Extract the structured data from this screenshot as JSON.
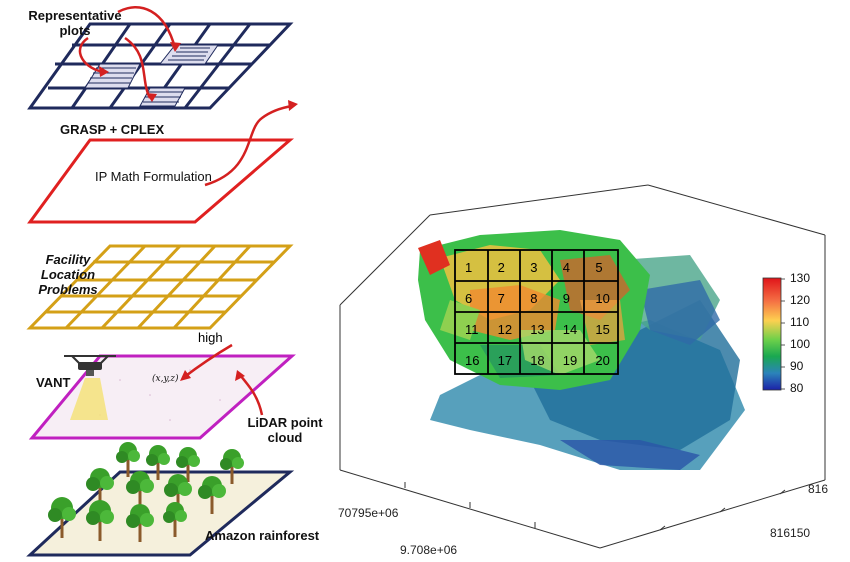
{
  "left_panel": {
    "representative_plots": "Representative plots",
    "grasp_cplex": "GRASP + CPLEX",
    "ip_math": "IP Math Formulation",
    "facility_location": "Facility Location Problems",
    "high": "high",
    "vant": "VANT",
    "xyz": "(x,y,z)",
    "lidar": "LiDAR point cloud",
    "amazon": "Amazon rainforest"
  },
  "right_panel": {
    "grid_cells": [
      "1",
      "2",
      "3",
      "4",
      "5",
      "6",
      "7",
      "8",
      "9",
      "10",
      "11",
      "12",
      "13",
      "14",
      "15",
      "16",
      "17",
      "18",
      "19",
      "20"
    ],
    "colorbar": {
      "ticks": [
        "130",
        "120",
        "110",
        "100",
        "90",
        "80"
      ],
      "range": [
        80,
        130
      ],
      "colors": [
        "#d7191c",
        "#f46d43",
        "#fdae61",
        "#a6d96a",
        "#1a9641",
        "#2b83ba",
        "#2c2ca0"
      ]
    },
    "axis": {
      "x_label_left": "70795e+06",
      "x_label_bottom": "9.708e+06",
      "y_label_right_top": "816",
      "y_label_right_bottom": "816150"
    }
  },
  "colors": {
    "top_grid": "#1f2a5c",
    "ip_plane": "#e02020",
    "facility_grid": "#d4a017",
    "lidar_plane": "#c020c0",
    "rainforest_plane": "#1f2a5c",
    "arrows": "#d42020"
  }
}
